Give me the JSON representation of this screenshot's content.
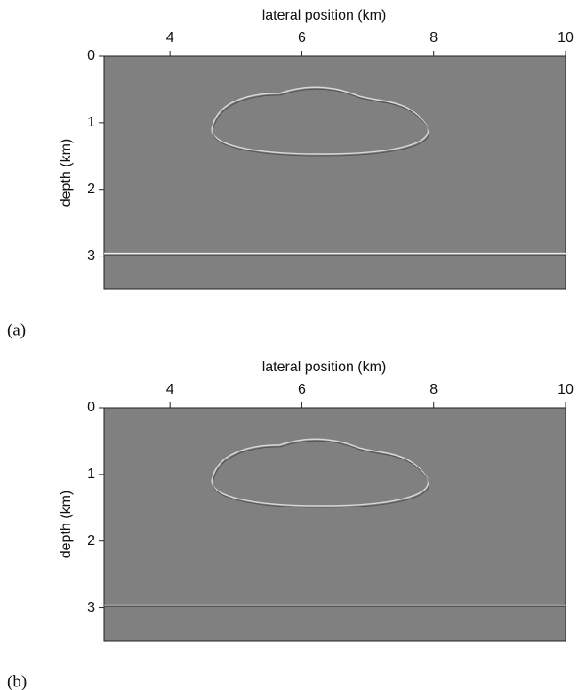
{
  "chart_data": [
    {
      "type": "image",
      "panel_label": "(a)",
      "xlabel": "lateral position (km)",
      "ylabel": "depth (km)",
      "xlim": [
        3,
        10
      ],
      "ylim": [
        0,
        3.5
      ],
      "xticks": [
        4,
        6,
        8,
        10
      ],
      "yticks": [
        0,
        1,
        2,
        3
      ],
      "x_axis_position": "top",
      "y_inverted": true,
      "color": "#808080"
    },
    {
      "type": "image",
      "panel_label": "(b)",
      "xlabel": "lateral position (km)",
      "ylabel": "depth (km)",
      "xlim": [
        3,
        10
      ],
      "ylim": [
        0,
        3.5
      ],
      "xticks": [
        4,
        6,
        8,
        10
      ],
      "yticks": [
        0,
        1,
        2,
        3
      ],
      "x_axis_position": "top",
      "y_inverted": true,
      "color": "#808080"
    }
  ]
}
